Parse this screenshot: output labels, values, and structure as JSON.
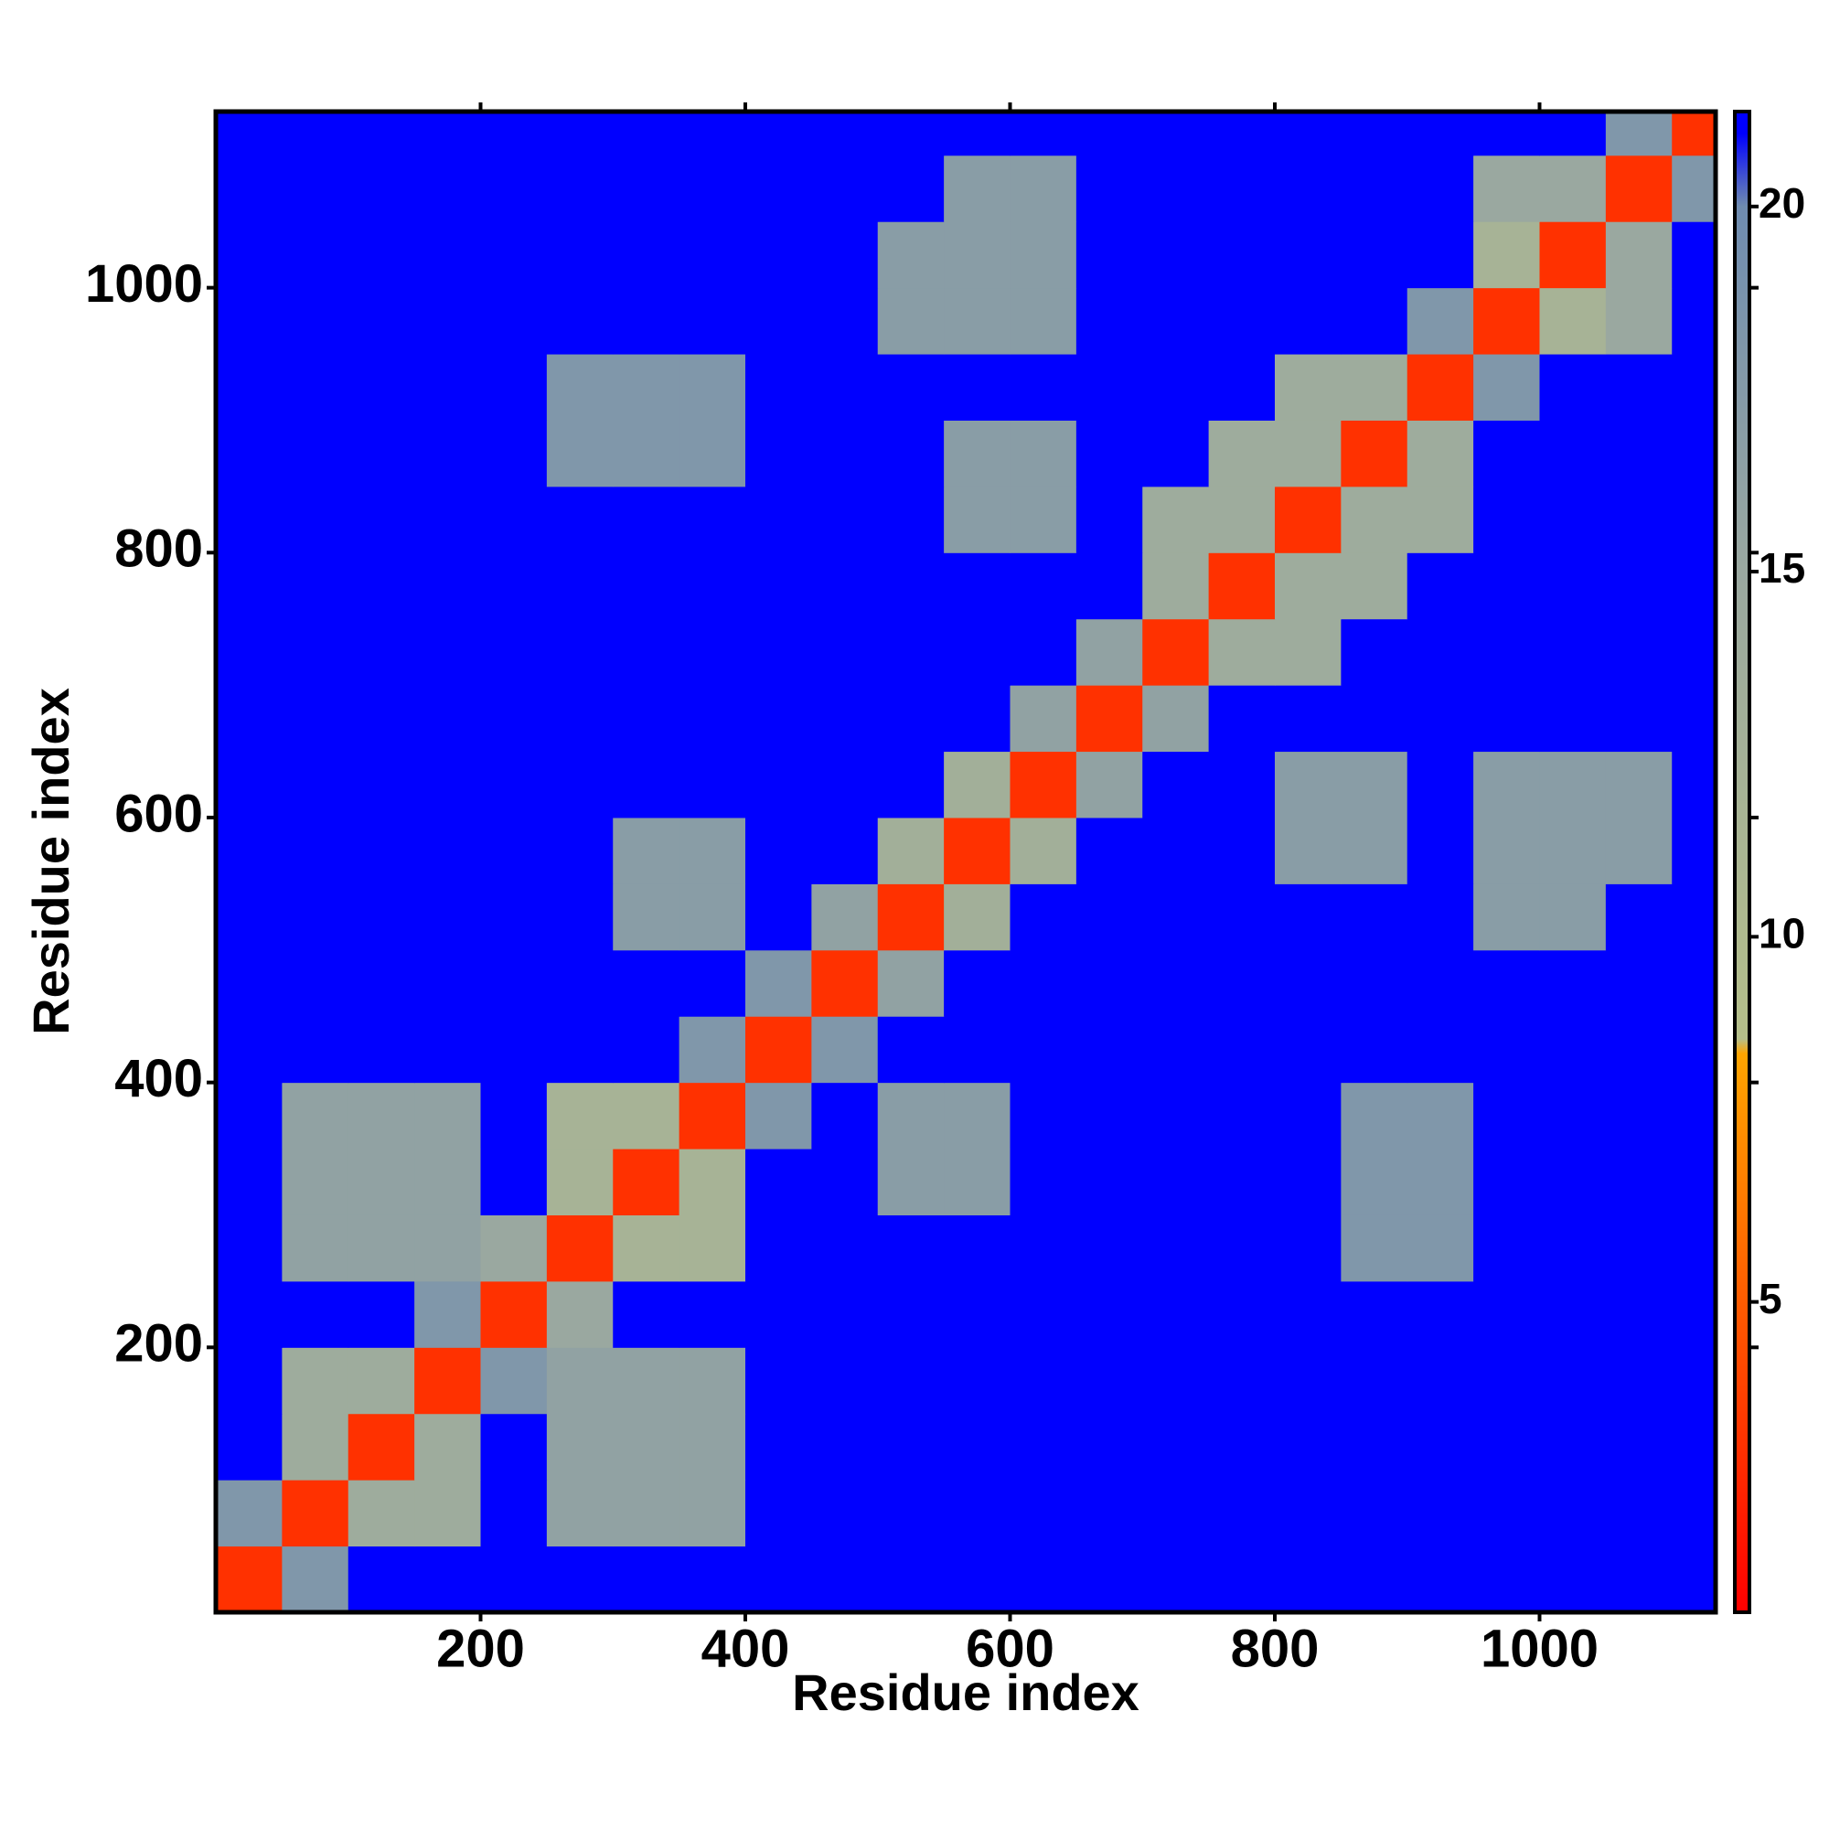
{
  "chart_data": {
    "type": "heatmap",
    "xlabel": "Residue index",
    "ylabel": "Residue index",
    "x": [
      0,
      50,
      100,
      150,
      200,
      250,
      300,
      350,
      400,
      450,
      500,
      550,
      600,
      650,
      700,
      750,
      800,
      850,
      900,
      950,
      1000,
      1050,
      1100
    ],
    "y": [
      0,
      50,
      100,
      150,
      200,
      250,
      300,
      350,
      400,
      450,
      500,
      550,
      600,
      650,
      700,
      750,
      800,
      850,
      900,
      950,
      1000,
      1050,
      1100
    ],
    "xlim": [
      0,
      1133
    ],
    "ylim": [
      0,
      1133
    ],
    "xticks": [
      200,
      400,
      600,
      800,
      1000
    ],
    "yticks": [
      200,
      400,
      600,
      800,
      1000
    ],
    "zlim": [
      0.75,
      21.3
    ],
    "zticks": [
      5,
      10,
      15,
      20
    ],
    "colorscale": [
      [
        0.75,
        "#ff0000"
      ],
      [
        8.4,
        "#ffa500"
      ],
      [
        8.6,
        "#b5bf8a"
      ],
      [
        15,
        "#9aa8a0"
      ],
      [
        20,
        "#6f8cb0"
      ],
      [
        21,
        "#0000ff"
      ],
      [
        21.3,
        "#0000ff"
      ]
    ],
    "values": [
      [
        3,
        18,
        21,
        21,
        21,
        21,
        21,
        21,
        21,
        21,
        21,
        21,
        21,
        21,
        21,
        21,
        21,
        21,
        21,
        21,
        21,
        21,
        21
      ],
      [
        18,
        3,
        14,
        14,
        21,
        16,
        16,
        16,
        21,
        21,
        21,
        21,
        21,
        21,
        21,
        21,
        21,
        21,
        21,
        21,
        21,
        21,
        21
      ],
      [
        21,
        14,
        3,
        14,
        21,
        16,
        16,
        16,
        21,
        21,
        21,
        21,
        21,
        21,
        21,
        21,
        21,
        21,
        21,
        21,
        21,
        21,
        21
      ],
      [
        21,
        14,
        14,
        3,
        18,
        16,
        16,
        16,
        21,
        21,
        21,
        21,
        21,
        21,
        21,
        21,
        21,
        21,
        21,
        21,
        21,
        21,
        21
      ],
      [
        21,
        21,
        21,
        18,
        3,
        15,
        21,
        21,
        21,
        21,
        21,
        21,
        21,
        21,
        21,
        21,
        21,
        21,
        21,
        21,
        21,
        21,
        21
      ],
      [
        21,
        16,
        16,
        16,
        15,
        3,
        12,
        12,
        21,
        21,
        21,
        21,
        21,
        21,
        21,
        21,
        21,
        18,
        18,
        21,
        21,
        21,
        21
      ],
      [
        21,
        16,
        16,
        16,
        21,
        12,
        3,
        12,
        21,
        21,
        17,
        17,
        21,
        21,
        21,
        21,
        21,
        18,
        18,
        21,
        21,
        21,
        21
      ],
      [
        21,
        16,
        16,
        16,
        21,
        12,
        12,
        3,
        18,
        21,
        17,
        17,
        21,
        21,
        21,
        21,
        21,
        18,
        18,
        21,
        21,
        21,
        21
      ],
      [
        21,
        21,
        21,
        21,
        21,
        21,
        21,
        18,
        3,
        18,
        21,
        21,
        21,
        21,
        21,
        21,
        21,
        21,
        21,
        21,
        21,
        21,
        21
      ],
      [
        21,
        21,
        21,
        21,
        21,
        21,
        21,
        21,
        18,
        3,
        16,
        21,
        21,
        21,
        21,
        21,
        21,
        21,
        21,
        21,
        21,
        21,
        21
      ],
      [
        21,
        21,
        21,
        21,
        21,
        21,
        17,
        17,
        21,
        16,
        3,
        13,
        21,
        21,
        21,
        21,
        21,
        21,
        21,
        17,
        17,
        21,
        21
      ],
      [
        21,
        21,
        21,
        21,
        21,
        21,
        17,
        17,
        21,
        21,
        13,
        3,
        13,
        21,
        21,
        21,
        17,
        17,
        21,
        17,
        17,
        17,
        21
      ],
      [
        21,
        21,
        21,
        21,
        21,
        21,
        21,
        21,
        21,
        21,
        21,
        13,
        3,
        16,
        21,
        21,
        17,
        17,
        21,
        17,
        17,
        17,
        21
      ],
      [
        21,
        21,
        21,
        21,
        21,
        21,
        21,
        21,
        21,
        21,
        21,
        21,
        16,
        3,
        16,
        21,
        21,
        21,
        21,
        21,
        21,
        21,
        21
      ],
      [
        21,
        21,
        21,
        21,
        21,
        21,
        21,
        21,
        21,
        21,
        21,
        21,
        21,
        16,
        3,
        14,
        14,
        21,
        21,
        21,
        21,
        21,
        21
      ],
      [
        21,
        21,
        21,
        21,
        21,
        21,
        21,
        21,
        21,
        21,
        21,
        21,
        21,
        21,
        14,
        3,
        14,
        14,
        21,
        21,
        21,
        21,
        21
      ],
      [
        21,
        21,
        21,
        21,
        21,
        21,
        21,
        21,
        21,
        21,
        21,
        17,
        17,
        21,
        14,
        14,
        3,
        14,
        14,
        21,
        21,
        21,
        21
      ],
      [
        21,
        21,
        21,
        21,
        21,
        18,
        18,
        18,
        21,
        21,
        21,
        17,
        17,
        21,
        21,
        14,
        14,
        3,
        14,
        21,
        21,
        21,
        21
      ],
      [
        21,
        21,
        21,
        21,
        21,
        18,
        18,
        18,
        21,
        21,
        21,
        21,
        21,
        21,
        21,
        21,
        14,
        14,
        3,
        18,
        21,
        21,
        21
      ],
      [
        21,
        21,
        21,
        21,
        21,
        21,
        21,
        21,
        21,
        21,
        17,
        17,
        17,
        21,
        21,
        21,
        21,
        21,
        18,
        3,
        12,
        15,
        21
      ],
      [
        21,
        21,
        21,
        21,
        21,
        21,
        21,
        21,
        21,
        21,
        17,
        17,
        17,
        21,
        21,
        21,
        21,
        21,
        21,
        12,
        3,
        15,
        21
      ],
      [
        21,
        21,
        21,
        21,
        21,
        21,
        21,
        21,
        21,
        21,
        21,
        17,
        17,
        21,
        21,
        21,
        21,
        21,
        21,
        15,
        15,
        3,
        18
      ],
      [
        21,
        21,
        21,
        21,
        21,
        21,
        21,
        21,
        21,
        21,
        21,
        21,
        21,
        21,
        21,
        21,
        21,
        21,
        21,
        21,
        21,
        18,
        3
      ]
    ]
  }
}
